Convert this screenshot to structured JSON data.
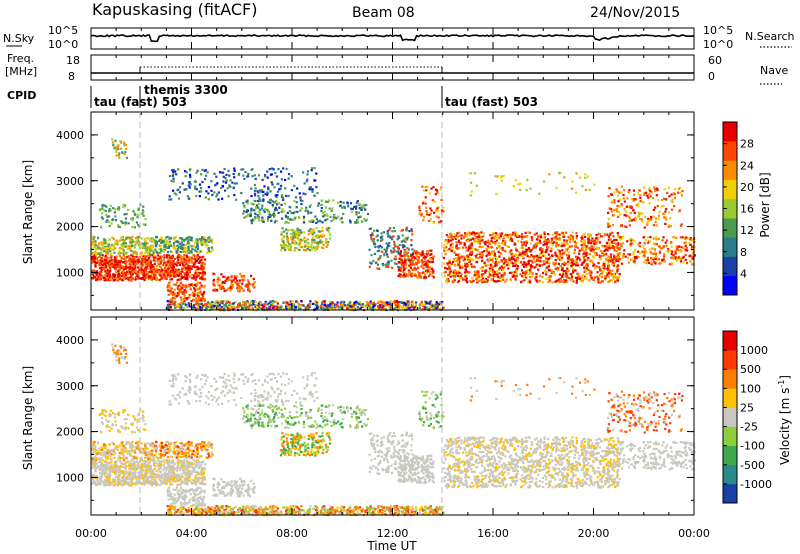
{
  "header": {
    "station": "Kapuskasing (fitACF)",
    "beam": "Beam 08",
    "date": "24/Nov/2015"
  },
  "noise_panel": {
    "left_label": "N.Sky",
    "right_label": "N.Search",
    "ticks_left": [
      "10^5",
      "10^0"
    ],
    "ticks_right": [
      "10^5",
      "10^0"
    ]
  },
  "freq_panel": {
    "left_label_1": "Freq.",
    "left_label_2": "[MHz]",
    "right_label": "Nave",
    "ticks_left": [
      "18",
      "8"
    ],
    "ticks_right": [
      "60",
      "0"
    ]
  },
  "cpid_panel": {
    "label": "CPID",
    "modes": [
      "tau (fast) 503",
      "themis 3300",
      "tau (fast) 503"
    ]
  },
  "power_panel": {
    "ylabel": "Slant Range [km]",
    "y_ticks": [
      "4000",
      "3000",
      "2000",
      "1000"
    ],
    "colorbar_label": "Power [dB]",
    "colorbar_ticks": [
      "28",
      "24",
      "20",
      "16",
      "12",
      "8",
      "4"
    ],
    "colors": [
      "#0000ff",
      "#1a3fa6",
      "#2a7d8a",
      "#4a9a50",
      "#9acc30",
      "#f0d000",
      "#ff8c00",
      "#ff4500",
      "#e80000"
    ]
  },
  "velocity_panel": {
    "ylabel": "Slant Range [km]",
    "y_ticks": [
      "4000",
      "3000",
      "2000",
      "1000"
    ],
    "colorbar_label": "Velocity [m s",
    "colorbar_label_sup": "-1",
    "colorbar_label_end": "]",
    "colorbar_ticks": [
      "1000",
      "500",
      "100",
      "25",
      "-25",
      "-100",
      "-500",
      "-1000"
    ],
    "colors": [
      "#1a3fa6",
      "#2a8a8a",
      "#3ea84a",
      "#8ccf3a",
      "#c8c8c0",
      "#ffc000",
      "#ff8000",
      "#ff3a00",
      "#e80000"
    ]
  },
  "x_axis": {
    "label": "Time UT",
    "ticks": [
      "00:00",
      "04:00",
      "08:00",
      "12:00",
      "16:00",
      "20:00",
      "00:00"
    ]
  },
  "chart_data": {
    "type": "heatmap",
    "title": "Kapuskasing (fitACF)",
    "subtitle": "Beam 08",
    "date": "24/Nov/2015",
    "xlabel": "Time UT",
    "ylabel": "Slant Range [km]",
    "x_range_hours": [
      0,
      24
    ],
    "y_range_km": [
      180,
      4500
    ],
    "cpid_changes": [
      {
        "time_hours": 0,
        "mode": "tau (fast) 503"
      },
      {
        "time_hours": 2,
        "mode": "themis 3300"
      },
      {
        "time_hours": 14,
        "mode": "tau (fast) 503"
      }
    ],
    "power_colorbar_db": [
      4,
      8,
      12,
      16,
      20,
      24,
      28
    ],
    "velocity_colorbar_ms": [
      1000,
      500,
      100,
      25,
      -25,
      -100,
      -500,
      -1000
    ]
  }
}
